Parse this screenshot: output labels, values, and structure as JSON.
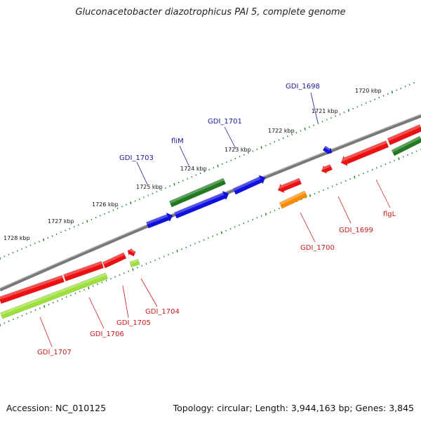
{
  "title": "Gluconacetobacter diazotrophicus PAl 5, complete genome",
  "footer": {
    "accession": "Accession: NC_010125",
    "summary": "Topology: circular; Length: 3,944,163 bp; Genes: 3,845"
  },
  "colors": {
    "backbone": "#808080",
    "tick_ruler": "#1a7a1a",
    "gene_label_blue": "#1a1aa0",
    "gene_label_red": "#cc1a1a",
    "blue_gene": "#1010e0",
    "green_gene": "#207a20",
    "red_gene": "#ee1010",
    "orange_gene": "#ff8c00",
    "lime_gene": "#9de03a"
  },
  "kbp_labels": [
    "1720 kbp",
    "1721 kbp",
    "1722 kbp",
    "1723 kbp",
    "1724 kbp",
    "1725 kbp",
    "1726 kbp",
    "1727 kbp",
    "1728 kbp"
  ],
  "gene_labels_top": [
    "GDI_1698",
    "GDI_1701",
    "fliM",
    "GDI_1703"
  ],
  "gene_labels_bottom": [
    "flgL",
    "GDI_1699",
    "GDI_1700",
    "GDI_1704",
    "GDI_1705",
    "GDI_1706",
    "GDI_1707"
  ]
}
